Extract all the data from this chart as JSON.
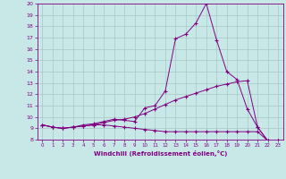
{
  "xlabel": "Windchill (Refroidissement éolien,°C)",
  "x": [
    0,
    1,
    2,
    3,
    4,
    5,
    6,
    7,
    8,
    9,
    10,
    11,
    12,
    13,
    14,
    15,
    16,
    17,
    18,
    19,
    20,
    21,
    22,
    23
  ],
  "line1": [
    9.3,
    9.1,
    9.0,
    9.1,
    9.3,
    9.4,
    9.6,
    9.8,
    9.7,
    9.6,
    10.8,
    11.0,
    12.3,
    16.9,
    17.3,
    18.3,
    20.0,
    16.8,
    14.0,
    13.3,
    10.7,
    9.1,
    7.9,
    7.9
  ],
  "line2": [
    9.3,
    9.1,
    9.0,
    9.1,
    9.2,
    9.3,
    9.5,
    9.7,
    9.8,
    10.0,
    10.3,
    10.7,
    11.1,
    11.5,
    11.8,
    12.1,
    12.4,
    12.7,
    12.9,
    13.1,
    13.2,
    9.1,
    7.9,
    7.9
  ],
  "line3": [
    9.3,
    9.1,
    9.0,
    9.1,
    9.2,
    9.3,
    9.3,
    9.2,
    9.1,
    9.0,
    8.9,
    8.8,
    8.7,
    8.7,
    8.7,
    8.7,
    8.7,
    8.7,
    8.7,
    8.7,
    8.7,
    8.7,
    7.9,
    7.9
  ],
  "line_color": "#800080",
  "bg_color": "#c8e8e8",
  "grid_color": "#a8c8c8",
  "ylim": [
    8,
    20
  ],
  "yticks": [
    8,
    9,
    10,
    11,
    12,
    13,
    14,
    15,
    16,
    17,
    18,
    19,
    20
  ],
  "xticks": [
    0,
    1,
    2,
    3,
    4,
    5,
    6,
    7,
    8,
    9,
    10,
    11,
    12,
    13,
    14,
    15,
    16,
    17,
    18,
    19,
    20,
    21,
    22,
    23
  ]
}
